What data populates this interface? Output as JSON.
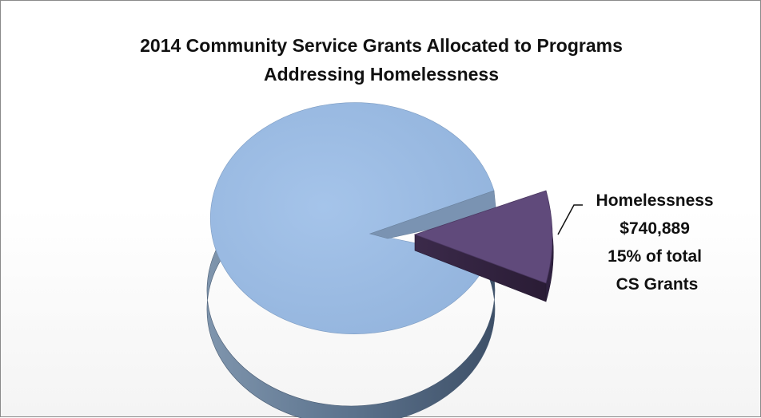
{
  "chart_data": {
    "type": "pie",
    "title_lines": [
      "2014 Community Service Grants Allocated to Programs",
      "Addressing  Homelessness"
    ],
    "slices": [
      {
        "name": "",
        "share": 0.85,
        "color": "#9bbbe3",
        "label_lines": []
      },
      {
        "name": "Homelessness",
        "value": 740889,
        "share": 0.15,
        "color": "#604a7b",
        "exploded": true,
        "label_lines": [
          "Homelessness",
          "$740,889",
          "15% of total",
          "CS Grants"
        ]
      }
    ],
    "style": "3d-exploded",
    "legend": "none"
  }
}
